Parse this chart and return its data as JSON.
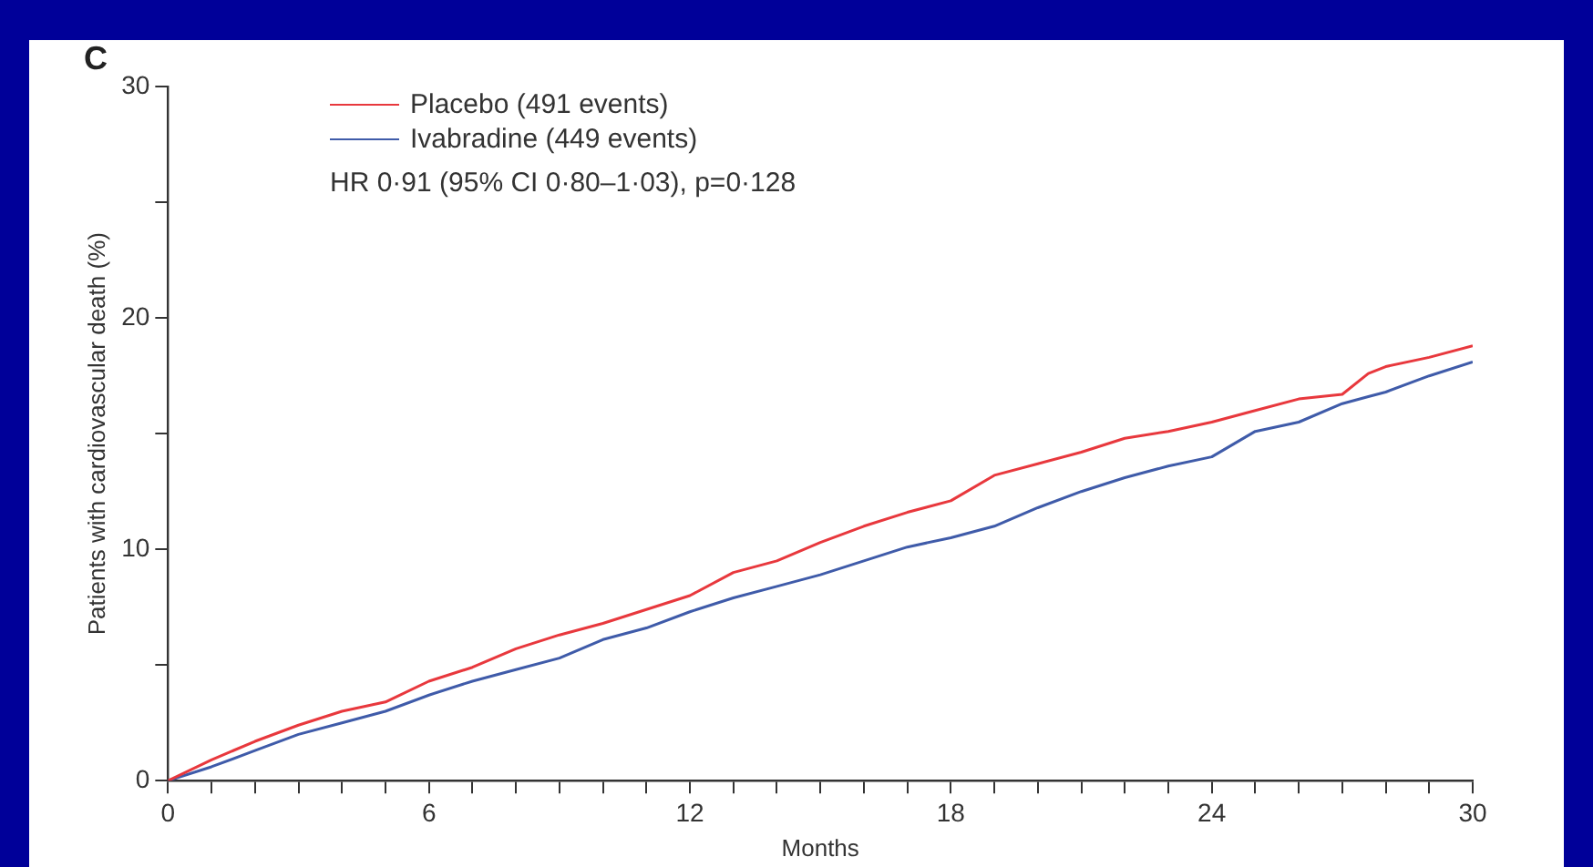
{
  "chart_data": {
    "type": "line",
    "title": "C",
    "xlabel": "Months",
    "ylabel": "Patients with cardiovascular death (%)",
    "annotations": [
      "HR 0·91 (95% CI 0·80–1·03), p=0·128"
    ],
    "x": [
      0,
      1,
      2,
      3,
      4,
      5,
      6,
      7,
      8,
      9,
      10,
      11,
      12,
      13,
      14,
      15,
      16,
      17,
      18,
      19,
      20,
      21,
      22,
      23,
      24,
      25,
      26,
      27,
      27.6,
      28,
      29,
      30
    ],
    "series": [
      {
        "name": "Placebo (491 events)",
        "color": "#e8383d",
        "values": [
          0,
          0.9,
          1.7,
          2.4,
          3.0,
          3.4,
          4.3,
          4.9,
          5.7,
          6.3,
          6.8,
          7.4,
          8.0,
          9.0,
          9.5,
          10.3,
          11.0,
          11.6,
          12.1,
          13.2,
          13.7,
          14.2,
          14.8,
          15.1,
          15.5,
          16.0,
          16.5,
          16.7,
          17.6,
          17.9,
          18.3,
          18.8
        ]
      },
      {
        "name": "Ivabradine (449 events)",
        "color": "#3f5ba9",
        "values": [
          0,
          0.6,
          1.3,
          2.0,
          2.5,
          3.0,
          3.7,
          4.3,
          4.8,
          5.3,
          6.1,
          6.6,
          7.3,
          7.9,
          8.4,
          8.9,
          9.5,
          10.1,
          10.5,
          11.0,
          11.8,
          12.5,
          13.1,
          13.6,
          14.0,
          15.1,
          15.5,
          16.3,
          16.6,
          16.8,
          17.5,
          18.1
        ]
      }
    ],
    "xlim": [
      0,
      30
    ],
    "xticks": [
      0,
      {
        "value": 1,
        "label": null
      },
      {
        "value": 2,
        "label": null
      },
      {
        "value": 3,
        "label": null
      },
      {
        "value": 4,
        "label": null
      },
      {
        "value": 5,
        "label": null
      },
      6,
      {
        "value": 7,
        "label": null
      },
      {
        "value": 8,
        "label": null
      },
      {
        "value": 9,
        "label": null
      },
      {
        "value": 10,
        "label": null
      },
      {
        "value": 11,
        "label": null
      },
      12,
      {
        "value": 13,
        "label": null
      },
      {
        "value": 14,
        "label": null
      },
      {
        "value": 15,
        "label": null
      },
      {
        "value": 16,
        "label": null
      },
      {
        "value": 17,
        "label": null
      },
      18,
      {
        "value": 19,
        "label": null
      },
      {
        "value": 20,
        "label": null
      },
      {
        "value": 21,
        "label": null
      },
      {
        "value": 22,
        "label": null
      },
      {
        "value": 23,
        "label": null
      },
      24,
      {
        "value": 25,
        "label": null
      },
      {
        "value": 26,
        "label": null
      },
      {
        "value": 27,
        "label": null
      },
      {
        "value": 28,
        "label": null
      },
      {
        "value": 29,
        "label": null
      },
      30
    ],
    "ylim": [
      0,
      30
    ],
    "yticks": [
      0,
      {
        "value": 5,
        "label": null
      },
      10,
      {
        "value": 15,
        "label": null
      },
      20,
      {
        "value": 25,
        "label": null
      },
      30
    ],
    "grid": false,
    "legend": "top left",
    "marker": "none",
    "line_style": "solid"
  }
}
